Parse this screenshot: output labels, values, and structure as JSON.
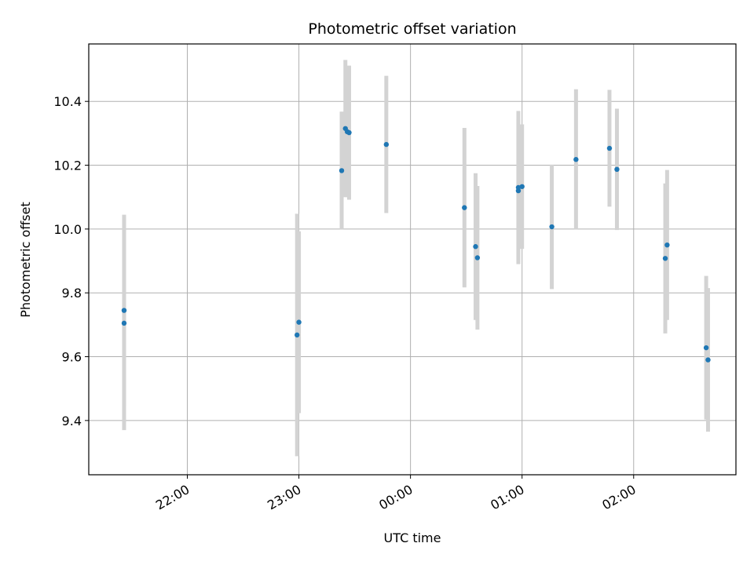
{
  "chart_data": {
    "type": "scatter",
    "title": "Photometric offset variation",
    "xlabel": "UTC time",
    "ylabel": "Photometric offset",
    "grid": true,
    "x_axis": {
      "kind": "time",
      "range": [
        "21:07",
        "02:55"
      ],
      "ticks": [
        "22:00",
        "23:00",
        "00:00",
        "01:00",
        "02:00"
      ]
    },
    "y_axis": {
      "range": [
        9.23,
        10.58
      ],
      "ticks": [
        9.4,
        9.6,
        9.8,
        10.0,
        10.2,
        10.4
      ]
    },
    "colors": {
      "points": "#1f77b4",
      "error_bars": "#d3d3d3",
      "grid": "#b0b0b0"
    },
    "points": [
      {
        "t": "21:26",
        "y": 9.745,
        "err": 0.3
      },
      {
        "t": "21:26",
        "y": 9.705,
        "err": 0.335
      },
      {
        "t": "22:59",
        "y": 9.668,
        "err": 0.38
      },
      {
        "t": "23:00",
        "y": 9.708,
        "err": 0.285
      },
      {
        "t": "23:23",
        "y": 10.183,
        "err": 0.185
      },
      {
        "t": "23:25",
        "y": 10.315,
        "err": 0.215
      },
      {
        "t": "23:26",
        "y": 10.305,
        "err": 0.205
      },
      {
        "t": "23:27",
        "y": 10.302,
        "err": 0.21
      },
      {
        "t": "23:47",
        "y": 10.265,
        "err": 0.215
      },
      {
        "t": "00:29",
        "y": 10.067,
        "err": 0.25
      },
      {
        "t": "00:35",
        "y": 9.945,
        "err": 0.23
      },
      {
        "t": "00:36",
        "y": 9.91,
        "err": 0.225
      },
      {
        "t": "00:58",
        "y": 10.12,
        "err": 0.225
      },
      {
        "t": "00:58",
        "y": 10.13,
        "err": 0.24
      },
      {
        "t": "01:00",
        "y": 10.133,
        "err": 0.195
      },
      {
        "t": "01:16",
        "y": 10.007,
        "err": 0.195
      },
      {
        "t": "01:29",
        "y": 10.218,
        "err": 0.22
      },
      {
        "t": "01:47",
        "y": 10.253,
        "err": 0.183
      },
      {
        "t": "01:51",
        "y": 10.187,
        "err": 0.19
      },
      {
        "t": "02:17",
        "y": 9.908,
        "err": 0.235
      },
      {
        "t": "02:18",
        "y": 9.95,
        "err": 0.235
      },
      {
        "t": "02:39",
        "y": 9.628,
        "err": 0.225
      },
      {
        "t": "02:40",
        "y": 9.59,
        "err": 0.225
      }
    ]
  }
}
